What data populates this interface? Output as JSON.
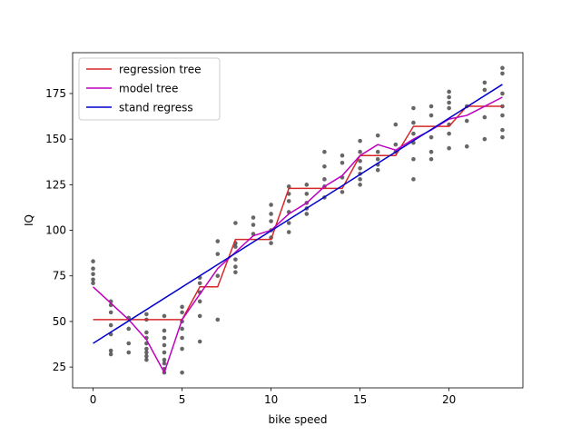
{
  "chart_data": {
    "type": "line",
    "xlabel": "bike speed",
    "ylabel": "IQ",
    "xlim": [
      -1.15,
      24.15
    ],
    "ylim": [
      13.6,
      197.4
    ],
    "x_ticks": [
      0,
      5,
      10,
      15,
      20
    ],
    "y_ticks": [
      25,
      50,
      75,
      100,
      125,
      150,
      175
    ],
    "grid": false,
    "legend_position": "top-left",
    "scatter": {
      "name": "",
      "color": "#000000",
      "points": [
        [
          0,
          83
        ],
        [
          0,
          79
        ],
        [
          0,
          76
        ],
        [
          0,
          73
        ],
        [
          0,
          71
        ],
        [
          1,
          61
        ],
        [
          1,
          59
        ],
        [
          1,
          55
        ],
        [
          1,
          48
        ],
        [
          1,
          43
        ],
        [
          1,
          34
        ],
        [
          1,
          32
        ],
        [
          2,
          52
        ],
        [
          2,
          46
        ],
        [
          2,
          38
        ],
        [
          2,
          33
        ],
        [
          3,
          54
        ],
        [
          3,
          51
        ],
        [
          3,
          44
        ],
        [
          3,
          41
        ],
        [
          3,
          38
        ],
        [
          3,
          35
        ],
        [
          3,
          33
        ],
        [
          3,
          31
        ],
        [
          3,
          29
        ],
        [
          4,
          53
        ],
        [
          4,
          45
        ],
        [
          4,
          41
        ],
        [
          4,
          37
        ],
        [
          4,
          33
        ],
        [
          4,
          29
        ],
        [
          4,
          27
        ],
        [
          4,
          24
        ],
        [
          4,
          22
        ],
        [
          5,
          58
        ],
        [
          5,
          55
        ],
        [
          5,
          50
        ],
        [
          5,
          46
        ],
        [
          5,
          41
        ],
        [
          5,
          35
        ],
        [
          5,
          22
        ],
        [
          6,
          74
        ],
        [
          6,
          71
        ],
        [
          6,
          66
        ],
        [
          6,
          61
        ],
        [
          6,
          53
        ],
        [
          6,
          39
        ],
        [
          7,
          94
        ],
        [
          7,
          87
        ],
        [
          7,
          75
        ],
        [
          7,
          51
        ],
        [
          8,
          104
        ],
        [
          8,
          93
        ],
        [
          8,
          91
        ],
        [
          8,
          84
        ],
        [
          8,
          80
        ],
        [
          8,
          77
        ],
        [
          9,
          107
        ],
        [
          9,
          103
        ],
        [
          9,
          98
        ],
        [
          10,
          114
        ],
        [
          10,
          109
        ],
        [
          10,
          105
        ],
        [
          10,
          100
        ],
        [
          10,
          96
        ],
        [
          10,
          93
        ],
        [
          11,
          124
        ],
        [
          11,
          120
        ],
        [
          11,
          116
        ],
        [
          11,
          110
        ],
        [
          11,
          104
        ],
        [
          11,
          99
        ],
        [
          12,
          125
        ],
        [
          12,
          120
        ],
        [
          12,
          115
        ],
        [
          12,
          112
        ],
        [
          12,
          109
        ],
        [
          13,
          143
        ],
        [
          13,
          135
        ],
        [
          13,
          128
        ],
        [
          13,
          124
        ],
        [
          13,
          118
        ],
        [
          14,
          141
        ],
        [
          14,
          137
        ],
        [
          14,
          129
        ],
        [
          14,
          121
        ],
        [
          15,
          149
        ],
        [
          15,
          143
        ],
        [
          15,
          138
        ],
        [
          15,
          134
        ],
        [
          15,
          131
        ],
        [
          15,
          128
        ],
        [
          15,
          125
        ],
        [
          16,
          152
        ],
        [
          16,
          143
        ],
        [
          16,
          139
        ],
        [
          16,
          136
        ],
        [
          16,
          133
        ],
        [
          17,
          158
        ],
        [
          17,
          147
        ],
        [
          17,
          143
        ],
        [
          18,
          167
        ],
        [
          18,
          159
        ],
        [
          18,
          153
        ],
        [
          18,
          148
        ],
        [
          18,
          139
        ],
        [
          18,
          128
        ],
        [
          19,
          168
        ],
        [
          19,
          163
        ],
        [
          19,
          151
        ],
        [
          19,
          143
        ],
        [
          19,
          139
        ],
        [
          20,
          176
        ],
        [
          20,
          173
        ],
        [
          20,
          170
        ],
        [
          20,
          167
        ],
        [
          20,
          158
        ],
        [
          20,
          153
        ],
        [
          20,
          145
        ],
        [
          21,
          168
        ],
        [
          21,
          160
        ],
        [
          21,
          146
        ],
        [
          22,
          181
        ],
        [
          22,
          177
        ],
        [
          22,
          162
        ],
        [
          22,
          150
        ],
        [
          23,
          189
        ],
        [
          23,
          186
        ],
        [
          23,
          175
        ],
        [
          23,
          168
        ],
        [
          23,
          163
        ],
        [
          23,
          155
        ],
        [
          23,
          151
        ]
      ]
    },
    "series": [
      {
        "name": "regression tree",
        "color": "#d62728",
        "x": [
          0,
          5,
          6,
          7,
          8,
          10,
          11,
          14,
          15,
          17,
          18,
          20,
          21,
          23
        ],
        "y": [
          51,
          51,
          69,
          69,
          95,
          95,
          123,
          123,
          141,
          141,
          157,
          157,
          168,
          168
        ],
        "step": true
      },
      {
        "name": "model tree",
        "color": "#bf00bf",
        "x": [
          0,
          1,
          2,
          3,
          4,
          5,
          6,
          7,
          8,
          9,
          10,
          11,
          12,
          13,
          14,
          15,
          16,
          17,
          18,
          19,
          20,
          21,
          22,
          23
        ],
        "y": [
          69,
          60,
          51,
          40,
          22,
          51,
          65,
          79,
          88,
          97,
          100,
          109,
          115,
          124,
          130,
          141,
          147,
          144,
          150,
          155,
          161,
          163,
          168,
          173
        ]
      },
      {
        "name": "stand regress",
        "color": "#0000cc",
        "x": [
          0,
          23
        ],
        "y": [
          38,
          180
        ]
      }
    ]
  }
}
